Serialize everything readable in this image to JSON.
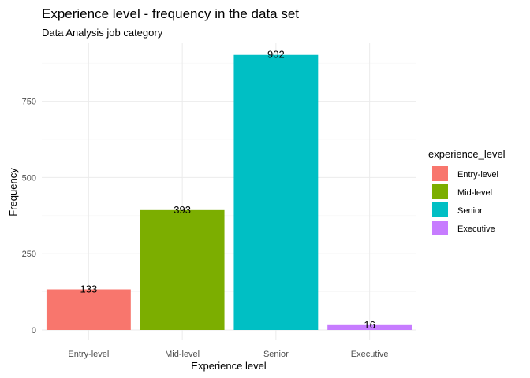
{
  "chart_data": {
    "type": "bar",
    "title": "Experience level - frequency in the data set",
    "subtitle": "Data Analysis job category",
    "xlabel": "Experience level",
    "ylabel": "Frequency",
    "categories": [
      "Entry-level",
      "Mid-level",
      "Senior",
      "Executive"
    ],
    "values": [
      133,
      393,
      902,
      16
    ],
    "data_labels": [
      "133",
      "393",
      "902",
      "16"
    ],
    "colors": [
      "#F8766D",
      "#7CAE00",
      "#00BFC4",
      "#C77CFF"
    ],
    "ylim": [
      0,
      947
    ],
    "y_ticks": [
      0,
      250,
      500,
      750
    ],
    "y_tick_labels": [
      "0",
      "250",
      "500",
      "750"
    ],
    "grid": true,
    "legend": {
      "title": "experience_level",
      "position": "right",
      "entries": [
        "Entry-level",
        "Mid-level",
        "Senior",
        "Executive"
      ]
    }
  }
}
